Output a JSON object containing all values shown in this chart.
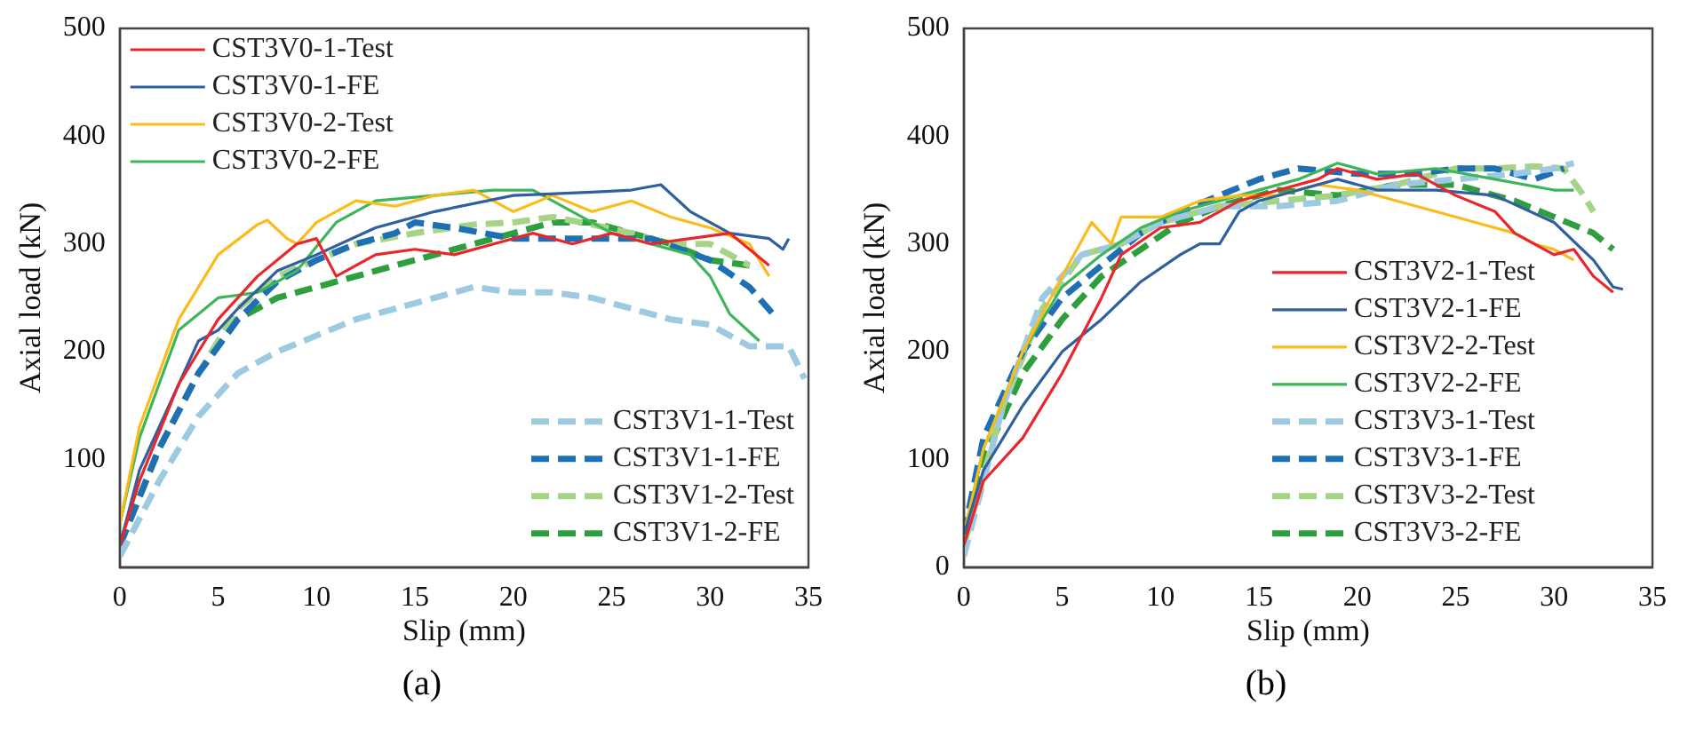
{
  "chart_data": [
    {
      "type": "line",
      "xlabel": "Slip (mm)",
      "ylabel": "Axial load (kN)",
      "xlim": [
        0,
        35
      ],
      "xticks": [
        0,
        5,
        10,
        15,
        20,
        25,
        30,
        35
      ],
      "ylim": [
        0,
        500
      ],
      "yticks": [
        100,
        200,
        300,
        400,
        500
      ],
      "grid": false,
      "legend": [
        "top left",
        "bottom right"
      ],
      "marker": "none",
      "annotations": [
        "(a)"
      ],
      "series": [
        {
          "name": "CST3V0-1-Test",
          "color": "#e8262b",
          "line_style": "solid",
          "x": [
            0,
            1,
            3,
            5,
            7,
            9,
            10,
            11,
            13,
            15,
            17,
            19,
            21,
            23,
            25,
            27,
            29,
            31,
            33
          ],
          "values": [
            20,
            80,
            170,
            230,
            270,
            300,
            305,
            270,
            290,
            295,
            290,
            300,
            310,
            300,
            310,
            300,
            305,
            310,
            280
          ]
        },
        {
          "name": "CST3V0-1-FE",
          "color": "#2e5f9e",
          "line_style": "solid",
          "x": [
            0,
            1,
            3,
            4,
            5,
            6,
            8,
            10,
            13,
            16,
            20,
            24,
            26,
            27.5,
            29,
            31,
            33,
            33.7,
            34
          ],
          "values": [
            20,
            90,
            170,
            210,
            220,
            240,
            275,
            290,
            315,
            330,
            345,
            348,
            350,
            355,
            330,
            310,
            305,
            295,
            305
          ]
        },
        {
          "name": "CST3V0-2-Test",
          "color": "#fbbb1a",
          "line_style": "solid",
          "x": [
            0,
            1,
            3,
            5,
            7,
            7.5,
            8.5,
            9,
            10,
            12,
            14,
            16,
            18,
            20,
            22,
            24,
            26,
            28,
            30,
            32,
            33
          ],
          "values": [
            40,
            130,
            230,
            290,
            318,
            322,
            305,
            300,
            320,
            340,
            335,
            345,
            350,
            330,
            345,
            330,
            340,
            325,
            315,
            300,
            270
          ]
        },
        {
          "name": "CST3V0-2-FE",
          "color": "#3fb55a",
          "line_style": "solid",
          "x": [
            0,
            1,
            3,
            5,
            7,
            9,
            11,
            13,
            16,
            19,
            21,
            23,
            25,
            27,
            29,
            30,
            31,
            32.5
          ],
          "values": [
            40,
            120,
            220,
            250,
            255,
            275,
            320,
            340,
            345,
            350,
            350,
            330,
            310,
            300,
            290,
            270,
            235,
            210
          ]
        },
        {
          "name": "CST3V1-1-Test",
          "color": "#9ecae1",
          "line_style": "dashed",
          "x": [
            0,
            2,
            4,
            6,
            8,
            10,
            12,
            14,
            16,
            18,
            20,
            22,
            24,
            26,
            28,
            30,
            32,
            34,
            34.8
          ],
          "values": [
            10,
            80,
            140,
            180,
            200,
            215,
            230,
            240,
            250,
            260,
            255,
            255,
            250,
            240,
            230,
            225,
            205,
            205,
            175
          ]
        },
        {
          "name": "CST3V1-1-FE",
          "color": "#1f6fb5",
          "line_style": "dashed",
          "x": [
            0,
            2,
            4,
            6,
            8,
            10,
            12,
            14,
            15,
            17,
            20,
            24,
            27,
            30,
            32,
            33.2
          ],
          "values": [
            20,
            110,
            180,
            230,
            265,
            285,
            300,
            310,
            320,
            315,
            305,
            305,
            305,
            285,
            260,
            235
          ]
        },
        {
          "name": "CST3V1-2-Test",
          "color": "#a6d487",
          "line_style": "dashed",
          "x": [
            0,
            2,
            4,
            6,
            8,
            10,
            12,
            15,
            18,
            20,
            22,
            24,
            26,
            28,
            30,
            31,
            32
          ],
          "values": [
            20,
            110,
            180,
            240,
            270,
            285,
            300,
            310,
            318,
            320,
            325,
            318,
            310,
            300,
            300,
            290,
            280
          ]
        },
        {
          "name": "CST3V1-2-FE",
          "color": "#2f9e3f",
          "line_style": "dashed",
          "x": [
            0,
            2,
            4,
            6,
            8,
            10,
            12,
            15,
            18,
            20,
            22,
            24,
            26,
            28,
            30,
            32
          ],
          "values": [
            20,
            110,
            180,
            230,
            250,
            260,
            270,
            285,
            300,
            310,
            320,
            320,
            310,
            300,
            285,
            280
          ]
        }
      ]
    },
    {
      "type": "line",
      "xlabel": "Slip (mm)",
      "ylabel": "Axial load (kN)",
      "xlim": [
        0,
        35
      ],
      "xticks": [
        0,
        5,
        10,
        15,
        20,
        25,
        30,
        35
      ],
      "ylim": [
        0,
        500
      ],
      "yticks": [
        0,
        100,
        200,
        300,
        400,
        500
      ],
      "grid": false,
      "legend": [
        "right"
      ],
      "marker": "none",
      "annotations": [
        "(b)"
      ],
      "series": [
        {
          "name": "CST3V2-1-Test",
          "color": "#e8262b",
          "line_style": "solid",
          "x": [
            0,
            1,
            3,
            5,
            7,
            8,
            10,
            12,
            14,
            16,
            18,
            19,
            21,
            23,
            25,
            27,
            28,
            30,
            31,
            32,
            33
          ],
          "values": [
            20,
            80,
            120,
            180,
            250,
            290,
            315,
            320,
            340,
            350,
            360,
            370,
            360,
            365,
            345,
            330,
            310,
            290,
            295,
            270,
            255
          ]
        },
        {
          "name": "CST3V2-1-FE",
          "color": "#2e5f9e",
          "line_style": "solid",
          "x": [
            0,
            1,
            3,
            5,
            7,
            9,
            11,
            12,
            13,
            14,
            15,
            17,
            19,
            21,
            24,
            27,
            30,
            32,
            33,
            33.5
          ],
          "values": [
            30,
            90,
            150,
            200,
            230,
            265,
            290,
            300,
            300,
            330,
            340,
            350,
            360,
            350,
            350,
            345,
            320,
            285,
            260,
            258
          ]
        },
        {
          "name": "CST3V2-2-Test",
          "color": "#fbbb1a",
          "line_style": "solid",
          "x": [
            0,
            1,
            3,
            5,
            6.5,
            7.5,
            8,
            10,
            12,
            14,
            16,
            18,
            20,
            22,
            24,
            26,
            28,
            29,
            30,
            31
          ],
          "values": [
            30,
            110,
            200,
            270,
            320,
            300,
            325,
            325,
            340,
            345,
            345,
            355,
            350,
            340,
            330,
            320,
            310,
            300,
            295,
            285
          ]
        },
        {
          "name": "CST3V2-2-FE",
          "color": "#3fb55a",
          "line_style": "solid",
          "x": [
            0,
            1,
            3,
            5,
            7,
            9,
            11,
            14,
            17,
            19,
            21,
            24,
            27,
            30,
            31
          ],
          "values": [
            30,
            110,
            200,
            260,
            290,
            315,
            330,
            345,
            360,
            375,
            365,
            370,
            360,
            350,
            350
          ]
        },
        {
          "name": "CST3V3-1-Test",
          "color": "#9ecae1",
          "line_style": "dashed",
          "x": [
            0,
            2,
            4,
            6,
            8,
            10,
            13,
            16,
            19,
            22,
            25,
            28,
            30,
            31
          ],
          "values": [
            10,
            150,
            250,
            290,
            300,
            320,
            335,
            335,
            340,
            355,
            360,
            365,
            370,
            375
          ]
        },
        {
          "name": "CST3V3-1-FE",
          "color": "#1f6fb5",
          "line_style": "dashed",
          "x": [
            0,
            1,
            3,
            5,
            7,
            9,
            11,
            13,
            15,
            17,
            20,
            23,
            25,
            27,
            29,
            30.5
          ],
          "values": [
            30,
            120,
            200,
            250,
            280,
            310,
            330,
            345,
            360,
            370,
            365,
            365,
            370,
            370,
            360,
            370
          ]
        },
        {
          "name": "CST3V3-2-Test",
          "color": "#a6d487",
          "line_style": "dashed",
          "x": [
            0,
            2,
            4,
            6,
            8,
            10,
            13,
            16,
            19,
            22,
            25,
            27,
            29,
            30.5,
            31.5,
            32
          ],
          "values": [
            20,
            150,
            240,
            290,
            300,
            320,
            335,
            340,
            345,
            355,
            370,
            370,
            372,
            370,
            345,
            330
          ]
        },
        {
          "name": "CST3V3-2-FE",
          "color": "#2f9e3f",
          "line_style": "dashed",
          "x": [
            0,
            1,
            3,
            5,
            7,
            9,
            11,
            13,
            16,
            19,
            22,
            25,
            28,
            30,
            32,
            33
          ],
          "values": [
            20,
            100,
            180,
            230,
            270,
            295,
            320,
            335,
            350,
            345,
            355,
            355,
            340,
            325,
            310,
            295
          ]
        }
      ]
    }
  ]
}
